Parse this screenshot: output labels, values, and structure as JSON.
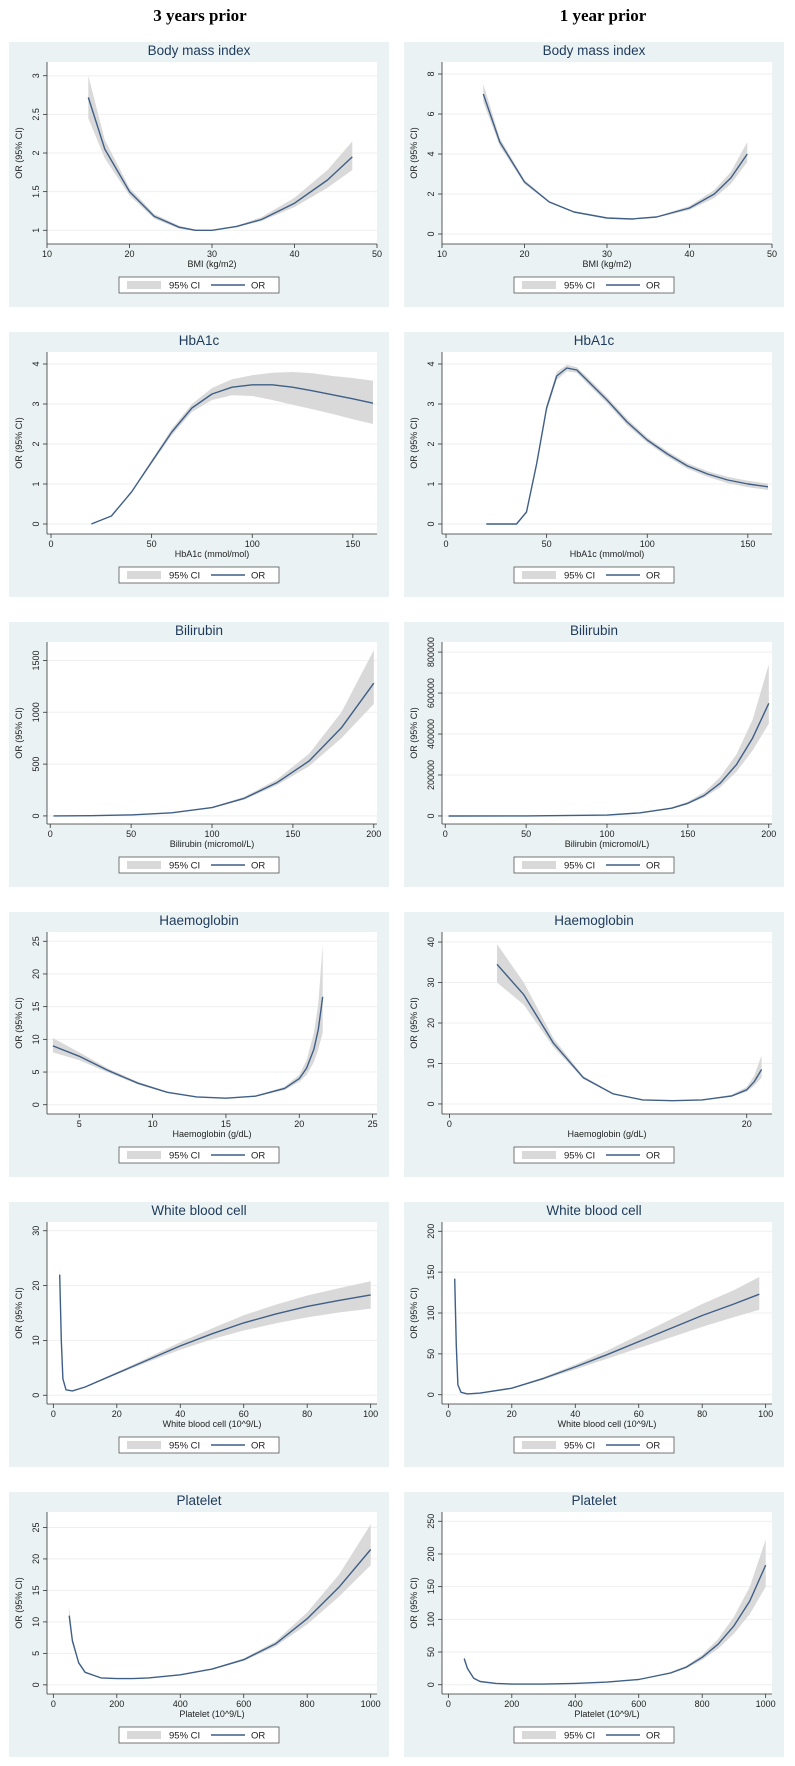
{
  "headers": {
    "left": "3 years prior",
    "right": "1 year prior"
  },
  "legend": {
    "ci": "95% CI",
    "or": "OR"
  },
  "colors": {
    "panel_bg": "#eaf2f3",
    "line": "#3f5f87",
    "ci_band": "#d9d9d9",
    "title": "#1e3a5c"
  },
  "chart_data": [
    {
      "type": "line",
      "title": "Body mass index",
      "xlabel": "BMI (kg/m2)",
      "ylabel": "OR (95% CI)",
      "xlim": [
        10,
        50
      ],
      "ylim": [
        0.9,
        3.1
      ],
      "xticks": [
        10,
        20,
        30,
        40,
        50
      ],
      "yticks": [
        1,
        1.5,
        2,
        2.5,
        3
      ],
      "x": [
        15,
        17,
        20,
        23,
        26,
        28,
        30,
        33,
        36,
        40,
        44,
        47
      ],
      "y": [
        2.72,
        2.05,
        1.5,
        1.18,
        1.04,
        1.0,
        1.0,
        1.05,
        1.14,
        1.35,
        1.65,
        1.95
      ],
      "lower": [
        2.45,
        1.93,
        1.45,
        1.15,
        1.02,
        0.99,
        1.0,
        1.04,
        1.12,
        1.3,
        1.55,
        1.78
      ],
      "upper": [
        3.0,
        2.17,
        1.55,
        1.21,
        1.06,
        1.01,
        1.0,
        1.06,
        1.17,
        1.42,
        1.78,
        2.15
      ],
      "grid": true,
      "legend_position": "bottom"
    },
    {
      "type": "line",
      "title": "Body mass index",
      "xlabel": "BMI (kg/m2)",
      "ylabel": "OR (95% CI)",
      "xlim": [
        10,
        50
      ],
      "ylim": [
        -0.2,
        8.3
      ],
      "xticks": [
        10,
        20,
        30,
        40,
        50
      ],
      "yticks": [
        0,
        2,
        4,
        6,
        8
      ],
      "x": [
        15,
        17,
        20,
        23,
        26,
        30,
        33,
        36,
        40,
        43,
        45,
        47
      ],
      "y": [
        7.0,
        4.6,
        2.6,
        1.6,
        1.1,
        0.8,
        0.75,
        0.85,
        1.3,
        2.0,
        2.8,
        4.0
      ],
      "lower": [
        6.6,
        4.4,
        2.5,
        1.55,
        1.07,
        0.78,
        0.73,
        0.82,
        1.2,
        1.8,
        2.5,
        3.6
      ],
      "upper": [
        7.5,
        4.8,
        2.7,
        1.65,
        1.13,
        0.82,
        0.77,
        0.88,
        1.4,
        2.2,
        3.1,
        4.6
      ],
      "grid": true,
      "legend_position": "bottom"
    },
    {
      "type": "line",
      "title": "HbA1c",
      "xlabel": "HbA1c (mmol/mol)",
      "ylabel": "OR (95% CI)",
      "xlim": [
        -2,
        162
      ],
      "ylim": [
        -0.1,
        4.15
      ],
      "xticks": [
        0,
        50,
        100,
        150
      ],
      "yticks": [
        0,
        1,
        2,
        3,
        4
      ],
      "x": [
        20,
        30,
        40,
        50,
        60,
        70,
        80,
        90,
        100,
        110,
        120,
        130,
        140,
        150,
        160
      ],
      "y": [
        0.0,
        0.2,
        0.8,
        1.55,
        2.3,
        2.9,
        3.25,
        3.42,
        3.48,
        3.48,
        3.42,
        3.33,
        3.23,
        3.13,
        3.02
      ],
      "lower": [
        0.0,
        0.19,
        0.78,
        1.5,
        2.22,
        2.8,
        3.1,
        3.22,
        3.2,
        3.1,
        2.98,
        2.87,
        2.75,
        2.62,
        2.5
      ],
      "upper": [
        0.0,
        0.21,
        0.82,
        1.6,
        2.38,
        3.0,
        3.4,
        3.62,
        3.72,
        3.78,
        3.8,
        3.77,
        3.7,
        3.65,
        3.58
      ],
      "grid": true,
      "legend_position": "bottom"
    },
    {
      "type": "line",
      "title": "HbA1c",
      "xlabel": "HbA1c (mmol/mol)",
      "ylabel": "OR (95% CI)",
      "xlim": [
        -2,
        162
      ],
      "ylim": [
        -0.1,
        4.15
      ],
      "xticks": [
        0,
        50,
        100,
        150
      ],
      "yticks": [
        0,
        1,
        2,
        3,
        4
      ],
      "x": [
        20,
        35,
        40,
        45,
        50,
        55,
        60,
        65,
        70,
        80,
        90,
        100,
        110,
        120,
        130,
        140,
        150,
        160
      ],
      "y": [
        0.0,
        0.0,
        0.3,
        1.5,
        2.9,
        3.7,
        3.9,
        3.85,
        3.6,
        3.1,
        2.55,
        2.1,
        1.75,
        1.45,
        1.25,
        1.1,
        1.0,
        0.93
      ],
      "lower": [
        0.0,
        0.0,
        0.28,
        1.45,
        2.82,
        3.6,
        3.82,
        3.78,
        3.52,
        3.02,
        2.47,
        2.03,
        1.68,
        1.38,
        1.18,
        1.02,
        0.92,
        0.85
      ],
      "upper": [
        0.0,
        0.0,
        0.32,
        1.55,
        2.98,
        3.8,
        3.98,
        3.92,
        3.68,
        3.18,
        2.63,
        2.17,
        1.82,
        1.52,
        1.32,
        1.18,
        1.08,
        1.01
      ],
      "grid": true,
      "legend_position": "bottom"
    },
    {
      "type": "line",
      "title": "Bilirubin",
      "xlabel": "Bilirubin (micromol/L)",
      "ylabel": "OR (95% CI)",
      "xlim": [
        -2,
        202
      ],
      "ylim": [
        -20,
        1620
      ],
      "xticks": [
        0,
        50,
        100,
        150,
        200
      ],
      "yticks": [
        0,
        500,
        1000,
        1500
      ],
      "x": [
        2,
        25,
        50,
        75,
        100,
        120,
        140,
        160,
        180,
        200
      ],
      "y": [
        0,
        2,
        10,
        30,
        80,
        170,
        320,
        530,
        850,
        1280
      ],
      "lower": [
        0,
        2,
        9,
        28,
        75,
        158,
        295,
        480,
        750,
        1080
      ],
      "upper": [
        0,
        2,
        11,
        33,
        86,
        185,
        350,
        600,
        1000,
        1600
      ],
      "grid": true,
      "legend_position": "bottom"
    },
    {
      "type": "line",
      "title": "Bilirubin",
      "xlabel": "Bilirubin (micromol/L)",
      "ylabel": "OR (95% CI)",
      "xlim": [
        -2,
        202
      ],
      "ylim": [
        -10000,
        820000
      ],
      "xticks": [
        0,
        50,
        100,
        150,
        200
      ],
      "yticks": [
        0,
        200000,
        400000,
        600000,
        800000
      ],
      "x": [
        2,
        50,
        100,
        120,
        140,
        150,
        160,
        170,
        180,
        190,
        200
      ],
      "y": [
        0,
        300,
        4000,
        15000,
        38000,
        62000,
        100000,
        160000,
        250000,
        380000,
        550000
      ],
      "lower": [
        0,
        280,
        3700,
        14000,
        35000,
        57000,
        90000,
        140000,
        215000,
        320000,
        450000
      ],
      "upper": [
        0,
        320,
        4300,
        16000,
        42000,
        70000,
        115000,
        190000,
        300000,
        470000,
        740000
      ],
      "grid": true,
      "legend_position": "bottom"
    },
    {
      "type": "line",
      "title": "Haemoglobin",
      "xlabel": "Haemoglobin (g/dL)",
      "ylabel": "OR (95% CI)",
      "xlim": [
        2.8,
        25.3
      ],
      "ylim": [
        -0.5,
        25.5
      ],
      "xticks": [
        5,
        10,
        15,
        20,
        25
      ],
      "yticks": [
        0,
        5,
        10,
        15,
        20,
        25
      ],
      "x": [
        3.2,
        5,
        7,
        9,
        11,
        13,
        15,
        17,
        19,
        20,
        20.5,
        21,
        21.3,
        21.6
      ],
      "y": [
        9.0,
        7.4,
        5.2,
        3.3,
        1.9,
        1.2,
        1.0,
        1.3,
        2.5,
        4.0,
        5.6,
        8.5,
        11.5,
        16.5
      ],
      "lower": [
        8.0,
        6.8,
        4.9,
        3.1,
        1.8,
        1.15,
        0.98,
        1.22,
        2.25,
        3.5,
        4.6,
        6.5,
        8.5,
        11.0
      ],
      "upper": [
        10.2,
        8.0,
        5.5,
        3.5,
        2.0,
        1.25,
        1.02,
        1.38,
        2.75,
        4.6,
        6.8,
        11.0,
        15.5,
        24.5
      ],
      "grid": true,
      "legend_position": "bottom"
    },
    {
      "type": "line",
      "title": "Haemoglobin",
      "xlabel": "Haemoglobin (g/dL)",
      "ylabel": "OR (95% CI)",
      "xlim": [
        -0.5,
        21.7
      ],
      "ylim": [
        -1,
        41
      ],
      "xticks": [
        0,
        20
      ],
      "yticks": [
        0,
        10,
        20,
        30,
        40
      ],
      "x": [
        3.2,
        5,
        7,
        9,
        11,
        13,
        15,
        17,
        19,
        20,
        20.5,
        21
      ],
      "y": [
        34.5,
        27.0,
        15.0,
        6.5,
        2.5,
        1.0,
        0.8,
        1.0,
        2.0,
        3.5,
        5.5,
        8.5
      ],
      "lower": [
        30.0,
        24.5,
        14.0,
        6.2,
        2.4,
        0.95,
        0.78,
        0.95,
        1.8,
        3.0,
        4.5,
        6.5
      ],
      "upper": [
        39.5,
        30.0,
        16.2,
        6.9,
        2.6,
        1.05,
        0.82,
        1.05,
        2.3,
        4.2,
        7.0,
        12.0
      ],
      "grid": true,
      "legend_position": "bottom"
    },
    {
      "type": "line",
      "title": "White blood cell",
      "xlabel": "White blood cell (10^9/L)",
      "ylabel": "OR (95% CI)",
      "xlim": [
        -2,
        102
      ],
      "ylim": [
        -0.5,
        30.5
      ],
      "xticks": [
        0,
        20,
        40,
        60,
        80,
        100
      ],
      "yticks": [
        0,
        10,
        20,
        30
      ],
      "x": [
        2,
        2.5,
        3,
        4,
        6,
        10,
        20,
        30,
        40,
        50,
        60,
        70,
        80,
        90,
        100
      ],
      "y": [
        22,
        10,
        3,
        1,
        0.8,
        1.5,
        4.0,
        6.5,
        9.0,
        11.2,
        13.2,
        14.8,
        16.2,
        17.3,
        18.3
      ],
      "lower": [
        20,
        9,
        2.7,
        0.9,
        0.75,
        1.4,
        3.8,
        6.1,
        8.3,
        10.2,
        11.8,
        13.1,
        14.2,
        15.1,
        15.8
      ],
      "upper": [
        24,
        11,
        3.3,
        1.1,
        0.85,
        1.6,
        4.2,
        6.9,
        9.7,
        12.2,
        14.6,
        16.5,
        18.2,
        19.5,
        20.8
      ],
      "grid": true,
      "legend_position": "bottom"
    },
    {
      "type": "line",
      "title": "White blood cell",
      "xlabel": "White blood cell (10^9/L)",
      "ylabel": "OR (95% CI)",
      "xlim": [
        -2,
        102
      ],
      "ylim": [
        -4,
        204
      ],
      "xticks": [
        0,
        20,
        40,
        60,
        80,
        100
      ],
      "yticks": [
        0,
        50,
        100,
        150,
        200
      ],
      "x": [
        2,
        2.5,
        3,
        4,
        6,
        10,
        20,
        30,
        40,
        50,
        60,
        70,
        80,
        90,
        98
      ],
      "y": [
        142,
        60,
        12,
        3,
        1,
        2,
        8,
        20,
        34,
        49,
        65,
        81,
        97,
        111,
        123
      ],
      "lower": [
        135,
        55,
        11,
        2.8,
        0.9,
        1.9,
        7.5,
        18.5,
        31,
        44,
        57,
        70,
        83,
        95,
        104
      ],
      "upper": [
        150,
        65,
        13,
        3.2,
        1.1,
        2.1,
        8.5,
        21.5,
        37,
        54,
        73,
        92,
        111,
        128,
        144
      ],
      "grid": true,
      "legend_position": "bottom"
    },
    {
      "type": "line",
      "title": "Platelet",
      "xlabel": "Platelet (10^9/L)",
      "ylabel": "OR (95% CI)",
      "xlim": [
        -20,
        1020
      ],
      "ylim": [
        -0.5,
        26.5
      ],
      "xticks": [
        0,
        200,
        400,
        600,
        800,
        1000
      ],
      "yticks": [
        0,
        5,
        10,
        15,
        20,
        25
      ],
      "x": [
        50,
        60,
        80,
        100,
        150,
        200,
        250,
        300,
        400,
        500,
        600,
        700,
        800,
        900,
        1000
      ],
      "y": [
        11,
        7,
        3.5,
        2.0,
        1.1,
        1.0,
        1.0,
        1.1,
        1.6,
        2.5,
        4.0,
        6.5,
        10.5,
        15.5,
        21.5
      ],
      "lower": [
        10,
        6.5,
        3.3,
        1.9,
        1.05,
        0.98,
        0.98,
        1.08,
        1.55,
        2.4,
        3.8,
        6.1,
        9.6,
        14.0,
        19.0
      ],
      "upper": [
        12.5,
        7.6,
        3.7,
        2.1,
        1.15,
        1.02,
        1.02,
        1.12,
        1.65,
        2.6,
        4.2,
        6.9,
        11.5,
        17.5,
        25.5
      ],
      "grid": true,
      "legend_position": "bottom"
    },
    {
      "type": "line",
      "title": "Platelet",
      "xlabel": "Platelet (10^9/L)",
      "ylabel": "OR (95% CI)",
      "xlim": [
        -20,
        1020
      ],
      "ylim": [
        -5,
        255
      ],
      "xticks": [
        0,
        200,
        400,
        600,
        800,
        1000
      ],
      "yticks": [
        0,
        50,
        100,
        150,
        200,
        250
      ],
      "x": [
        50,
        60,
        80,
        100,
        150,
        200,
        300,
        400,
        500,
        600,
        700,
        750,
        800,
        850,
        900,
        950,
        1000
      ],
      "y": [
        40,
        25,
        10,
        5,
        2,
        1,
        1,
        2,
        4,
        8,
        18,
        27,
        42,
        62,
        90,
        128,
        183
      ],
      "lower": [
        37,
        23,
        9.3,
        4.7,
        1.9,
        0.95,
        0.95,
        1.9,
        3.8,
        7.5,
        16.5,
        25,
        38,
        55,
        78,
        108,
        150
      ],
      "upper": [
        44,
        27,
        10.7,
        5.3,
        2.1,
        1.05,
        1.05,
        2.1,
        4.2,
        8.5,
        19.5,
        29,
        46,
        70,
        104,
        150,
        222
      ],
      "grid": true,
      "legend_position": "bottom"
    }
  ]
}
